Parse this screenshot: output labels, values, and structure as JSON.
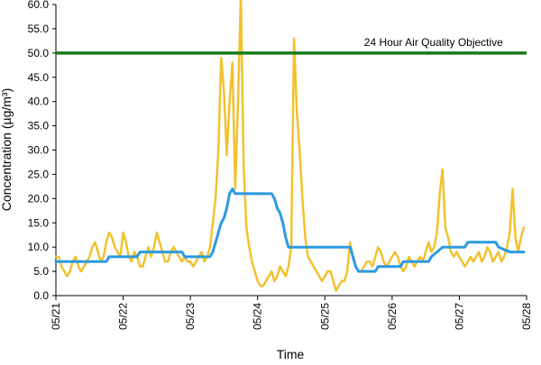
{
  "chart_data": {
    "type": "line",
    "xlabel": "Time",
    "ylabel": "Concentration (µg/m³)",
    "xlim": [
      "05/21",
      "05/28"
    ],
    "ylim": [
      0,
      60
    ],
    "x_ticks": [
      "05/21",
      "05/22",
      "05/23",
      "05/24",
      "05/25",
      "05/26",
      "05/27",
      "05/28"
    ],
    "y_ticks": [
      "0.0",
      "5.0",
      "10.0",
      "15.0",
      "20.0",
      "25.0",
      "30.0",
      "35.0",
      "40.0",
      "45.0",
      "50.0",
      "55.0",
      "60.0"
    ],
    "grid": false,
    "legend": "none",
    "annotations": [
      {
        "text": "24 Hour Air Quality Objective",
        "x": "05/25 14:00",
        "y": 51.5
      }
    ],
    "objective_line": {
      "y": 50,
      "color": "#1a7a1a"
    },
    "series": [
      {
        "color": "#f2c12e",
        "points": [
          [
            "05/21 00:00",
            8
          ],
          [
            "05/21 01:00",
            8
          ],
          [
            "05/21 02:00",
            6
          ],
          [
            "05/21 03:00",
            5
          ],
          [
            "05/21 04:00",
            4
          ],
          [
            "05/21 05:00",
            5
          ],
          [
            "05/21 06:00",
            7
          ],
          [
            "05/21 07:00",
            8
          ],
          [
            "05/21 08:00",
            6
          ],
          [
            "05/21 09:00",
            5
          ],
          [
            "05/21 10:00",
            6
          ],
          [
            "05/21 11:00",
            7
          ],
          [
            "05/21 12:00",
            8
          ],
          [
            "05/21 13:00",
            10
          ],
          [
            "05/21 14:00",
            11
          ],
          [
            "05/21 15:00",
            9
          ],
          [
            "05/21 16:00",
            7
          ],
          [
            "05/21 17:00",
            8
          ],
          [
            "05/21 18:00",
            11
          ],
          [
            "05/21 19:00",
            13
          ],
          [
            "05/21 20:00",
            12
          ],
          [
            "05/21 21:00",
            10
          ],
          [
            "05/21 22:00",
            9
          ],
          [
            "05/21 23:00",
            8
          ],
          [
            "05/22 00:00",
            13
          ],
          [
            "05/22 01:00",
            11
          ],
          [
            "05/22 02:00",
            8
          ],
          [
            "05/22 03:00",
            7
          ],
          [
            "05/22 04:00",
            9
          ],
          [
            "05/22 05:00",
            8
          ],
          [
            "05/22 06:00",
            6
          ],
          [
            "05/22 07:00",
            6
          ],
          [
            "05/22 08:00",
            8
          ],
          [
            "05/22 09:00",
            10
          ],
          [
            "05/22 10:00",
            8
          ],
          [
            "05/22 11:00",
            10
          ],
          [
            "05/22 12:00",
            13
          ],
          [
            "05/22 13:00",
            11
          ],
          [
            "05/22 14:00",
            9
          ],
          [
            "05/22 15:00",
            7
          ],
          [
            "05/22 16:00",
            7
          ],
          [
            "05/22 17:00",
            9
          ],
          [
            "05/22 18:00",
            10
          ],
          [
            "05/22 19:00",
            9
          ],
          [
            "05/22 20:00",
            8
          ],
          [
            "05/22 21:00",
            7
          ],
          [
            "05/22 22:00",
            8
          ],
          [
            "05/22 23:00",
            7
          ],
          [
            "05/23 00:00",
            7
          ],
          [
            "05/23 01:00",
            6
          ],
          [
            "05/23 02:00",
            7
          ],
          [
            "05/23 03:00",
            8
          ],
          [
            "05/23 04:00",
            9
          ],
          [
            "05/23 05:00",
            7
          ],
          [
            "05/23 06:00",
            8
          ],
          [
            "05/23 07:00",
            10
          ],
          [
            "05/23 08:00",
            15
          ],
          [
            "05/23 09:00",
            20
          ],
          [
            "05/23 10:00",
            30
          ],
          [
            "05/23 11:00",
            49
          ],
          [
            "05/23 12:00",
            42
          ],
          [
            "05/23 13:00",
            29
          ],
          [
            "05/23 14:00",
            40
          ],
          [
            "05/23 15:00",
            48
          ],
          [
            "05/23 16:00",
            22
          ],
          [
            "05/23 17:00",
            40
          ],
          [
            "05/23 18:00",
            62
          ],
          [
            "05/23 19:00",
            27
          ],
          [
            "05/23 20:00",
            14
          ],
          [
            "05/23 21:00",
            10
          ],
          [
            "05/23 22:00",
            7
          ],
          [
            "05/23 23:00",
            5
          ],
          [
            "05/24 00:00",
            3
          ],
          [
            "05/24 01:00",
            2
          ],
          [
            "05/24 02:00",
            2
          ],
          [
            "05/24 03:00",
            3
          ],
          [
            "05/24 04:00",
            4
          ],
          [
            "05/24 05:00",
            5
          ],
          [
            "05/24 06:00",
            3
          ],
          [
            "05/24 07:00",
            4
          ],
          [
            "05/24 08:00",
            6
          ],
          [
            "05/24 09:00",
            5
          ],
          [
            "05/24 10:00",
            4
          ],
          [
            "05/24 11:00",
            6
          ],
          [
            "05/24 12:00",
            10
          ],
          [
            "05/24 13:00",
            53
          ],
          [
            "05/24 14:00",
            38
          ],
          [
            "05/24 15:00",
            30
          ],
          [
            "05/24 16:00",
            20
          ],
          [
            "05/24 17:00",
            12
          ],
          [
            "05/24 18:00",
            8
          ],
          [
            "05/24 19:00",
            7
          ],
          [
            "05/24 20:00",
            6
          ],
          [
            "05/24 21:00",
            5
          ],
          [
            "05/24 22:00",
            4
          ],
          [
            "05/24 23:00",
            3
          ],
          [
            "05/25 00:00",
            4
          ],
          [
            "05/25 01:00",
            5
          ],
          [
            "05/25 02:00",
            5
          ],
          [
            "05/25 03:00",
            3
          ],
          [
            "05/25 04:00",
            1
          ],
          [
            "05/25 05:00",
            2
          ],
          [
            "05/25 06:00",
            3
          ],
          [
            "05/25 07:00",
            3
          ],
          [
            "05/25 08:00",
            5
          ],
          [
            "05/25 09:00",
            11
          ],
          [
            "05/25 10:00",
            8
          ],
          [
            "05/25 11:00",
            6
          ],
          [
            "05/25 12:00",
            5
          ],
          [
            "05/25 13:00",
            5
          ],
          [
            "05/25 14:00",
            6
          ],
          [
            "05/25 15:00",
            7
          ],
          [
            "05/25 16:00",
            7
          ],
          [
            "05/25 17:00",
            6
          ],
          [
            "05/25 18:00",
            8
          ],
          [
            "05/25 19:00",
            10
          ],
          [
            "05/25 20:00",
            9
          ],
          [
            "05/25 21:00",
            7
          ],
          [
            "05/25 22:00",
            6
          ],
          [
            "05/25 23:00",
            7
          ],
          [
            "05/26 00:00",
            8
          ],
          [
            "05/26 01:00",
            9
          ],
          [
            "05/26 02:00",
            8
          ],
          [
            "05/26 03:00",
            6
          ],
          [
            "05/26 04:00",
            5
          ],
          [
            "05/26 05:00",
            6
          ],
          [
            "05/26 06:00",
            8
          ],
          [
            "05/26 07:00",
            7
          ],
          [
            "05/26 08:00",
            6
          ],
          [
            "05/26 09:00",
            7
          ],
          [
            "05/26 10:00",
            8
          ],
          [
            "05/26 11:00",
            7
          ],
          [
            "05/26 12:00",
            9
          ],
          [
            "05/26 13:00",
            11
          ],
          [
            "05/26 14:00",
            9
          ],
          [
            "05/26 15:00",
            10
          ],
          [
            "05/26 16:00",
            13
          ],
          [
            "05/26 17:00",
            21
          ],
          [
            "05/26 18:00",
            26
          ],
          [
            "05/26 19:00",
            14
          ],
          [
            "05/26 20:00",
            12
          ],
          [
            "05/26 21:00",
            9
          ],
          [
            "05/26 22:00",
            8
          ],
          [
            "05/26 23:00",
            9
          ],
          [
            "05/27 00:00",
            8
          ],
          [
            "05/27 01:00",
            7
          ],
          [
            "05/27 02:00",
            6
          ],
          [
            "05/27 03:00",
            7
          ],
          [
            "05/27 04:00",
            8
          ],
          [
            "05/27 05:00",
            7
          ],
          [
            "05/27 06:00",
            8
          ],
          [
            "05/27 07:00",
            9
          ],
          [
            "05/27 08:00",
            7
          ],
          [
            "05/27 09:00",
            8
          ],
          [
            "05/27 10:00",
            10
          ],
          [
            "05/27 11:00",
            9
          ],
          [
            "05/27 12:00",
            7
          ],
          [
            "05/27 13:00",
            8
          ],
          [
            "05/27 14:00",
            9
          ],
          [
            "05/27 15:00",
            7
          ],
          [
            "05/27 16:00",
            8
          ],
          [
            "05/27 17:00",
            10
          ],
          [
            "05/27 18:00",
            13
          ],
          [
            "05/27 19:00",
            22
          ],
          [
            "05/27 20:00",
            12
          ],
          [
            "05/27 21:00",
            9
          ],
          [
            "05/27 22:00",
            12
          ],
          [
            "05/27 23:00",
            14
          ]
        ]
      },
      {
        "color": "#2b9ae0",
        "points": [
          [
            "05/21 00:00",
            7
          ],
          [
            "05/21 18:00",
            7
          ],
          [
            "05/21 19:00",
            8
          ],
          [
            "05/22 05:00",
            8
          ],
          [
            "05/22 06:00",
            9
          ],
          [
            "05/22 21:00",
            9
          ],
          [
            "05/22 22:00",
            8
          ],
          [
            "05/23 07:00",
            8
          ],
          [
            "05/23 08:00",
            9
          ],
          [
            "05/23 09:00",
            11
          ],
          [
            "05/23 10:00",
            13
          ],
          [
            "05/23 11:00",
            15
          ],
          [
            "05/23 12:00",
            16
          ],
          [
            "05/23 13:00",
            18
          ],
          [
            "05/23 14:00",
            21
          ],
          [
            "05/23 15:00",
            22
          ],
          [
            "05/23 16:00",
            21
          ],
          [
            "05/24 05:00",
            21
          ],
          [
            "05/24 06:00",
            20
          ],
          [
            "05/24 07:00",
            18
          ],
          [
            "05/24 08:00",
            17
          ],
          [
            "05/24 09:00",
            15
          ],
          [
            "05/24 10:00",
            12
          ],
          [
            "05/24 11:00",
            10
          ],
          [
            "05/25 09:00",
            10
          ],
          [
            "05/25 10:00",
            8
          ],
          [
            "05/25 11:00",
            6
          ],
          [
            "05/25 12:00",
            5
          ],
          [
            "05/25 18:00",
            5
          ],
          [
            "05/25 19:00",
            6
          ],
          [
            "05/26 03:00",
            6
          ],
          [
            "05/26 04:00",
            7
          ],
          [
            "05/26 13:00",
            7
          ],
          [
            "05/26 14:00",
            8
          ],
          [
            "05/26 16:00",
            9
          ],
          [
            "05/26 18:00",
            10
          ],
          [
            "05/27 02:00",
            10
          ],
          [
            "05/27 03:00",
            11
          ],
          [
            "05/27 13:00",
            11
          ],
          [
            "05/27 14:00",
            10
          ],
          [
            "05/27 18:00",
            9
          ],
          [
            "05/27 23:00",
            9
          ]
        ]
      }
    ]
  }
}
